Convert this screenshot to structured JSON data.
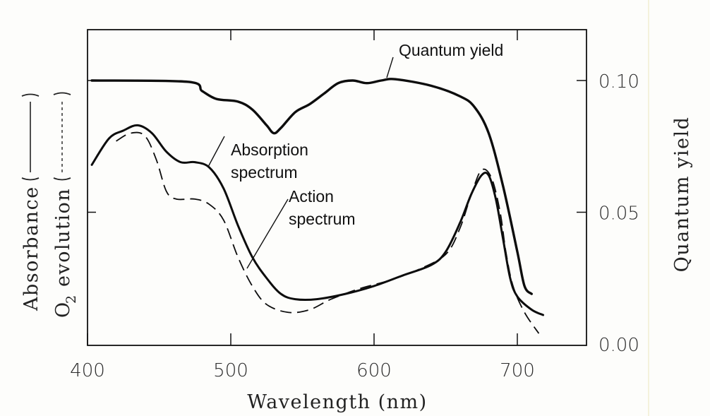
{
  "chart_data": {
    "type": "line",
    "title": "",
    "xlabel": "Wavelength (nm)",
    "ylabel_left_line1": "Absorbance (———)",
    "ylabel_left_line2": "O₂ evolution (- - - - -)",
    "ylabel_left_line1_text": "Absorbance",
    "ylabel_left_line2_text": "evolution",
    "ylabel_left_line2_prefix": "O",
    "ylabel_left_line2_subscript": "2",
    "ylabel_right": "Quantum yield",
    "xlim": [
      400,
      745
    ],
    "ylim_right": [
      0.0,
      0.12
    ],
    "x_ticks": [
      400,
      500,
      600,
      700
    ],
    "x_tick_labels": [
      "400",
      "500",
      "600",
      "700"
    ],
    "y_right_ticks": [
      0.0,
      0.05,
      0.1
    ],
    "y_right_tick_labels": [
      "0.00",
      "0.05",
      "0.10"
    ],
    "y_left_ticks_note": "unlabeled ticks at same heights as 0.05 and 0.10",
    "grid": false,
    "annotations": [
      {
        "text": "Quantum yield",
        "points_to": "quantum-yield"
      },
      {
        "text": "Absorption",
        "text2": "spectrum",
        "points_to": "absorption-spectrum"
      },
      {
        "text": "Action",
        "text2": "spectrum",
        "points_to": "action-spectrum"
      }
    ],
    "series": [
      {
        "name": "Quantum yield",
        "style": "solid-thick",
        "axis": "right",
        "x": [
          403,
          470,
          480,
          490,
          505,
          515,
          525,
          530,
          535,
          545,
          555,
          565,
          575,
          585,
          595,
          605,
          615,
          640,
          660,
          670,
          680,
          690,
          700,
          705,
          710
        ],
        "y": [
          0.1,
          0.0995,
          0.096,
          0.093,
          0.092,
          0.089,
          0.083,
          0.08,
          0.082,
          0.088,
          0.091,
          0.095,
          0.099,
          0.1,
          0.099,
          0.1,
          0.1005,
          0.098,
          0.094,
          0.09,
          0.08,
          0.06,
          0.035,
          0.022,
          0.019
        ]
      },
      {
        "name": "Absorption spectrum",
        "style": "solid",
        "axis": "left (relative units)",
        "x": [
          403,
          415,
          425,
          435,
          445,
          455,
          465,
          475,
          485,
          495,
          505,
          515,
          525,
          535,
          545,
          560,
          580,
          600,
          620,
          640,
          650,
          660,
          668,
          675,
          680,
          685,
          690,
          695,
          700,
          710,
          718
        ],
        "y": [
          0.068,
          0.078,
          0.081,
          0.083,
          0.08,
          0.073,
          0.069,
          0.069,
          0.067,
          0.059,
          0.045,
          0.033,
          0.025,
          0.019,
          0.017,
          0.017,
          0.019,
          0.022,
          0.026,
          0.03,
          0.035,
          0.046,
          0.057,
          0.064,
          0.064,
          0.055,
          0.04,
          0.025,
          0.018,
          0.013,
          0.011
        ]
      },
      {
        "name": "Action spectrum (O2 evolution)",
        "style": "dashed",
        "axis": "left (relative units)",
        "x": [
          420,
          430,
          440,
          448,
          455,
          462,
          475,
          485,
          495,
          505,
          515,
          525,
          540,
          555,
          570,
          590,
          610,
          630,
          650,
          660,
          668,
          675,
          682,
          688,
          692,
          697,
          705,
          715
        ],
        "y": [
          0.077,
          0.08,
          0.079,
          0.07,
          0.058,
          0.055,
          0.055,
          0.053,
          0.047,
          0.033,
          0.022,
          0.015,
          0.012,
          0.013,
          0.017,
          0.021,
          0.024,
          0.028,
          0.034,
          0.044,
          0.057,
          0.066,
          0.063,
          0.05,
          0.035,
          0.022,
          0.012,
          0.004
        ]
      }
    ]
  }
}
